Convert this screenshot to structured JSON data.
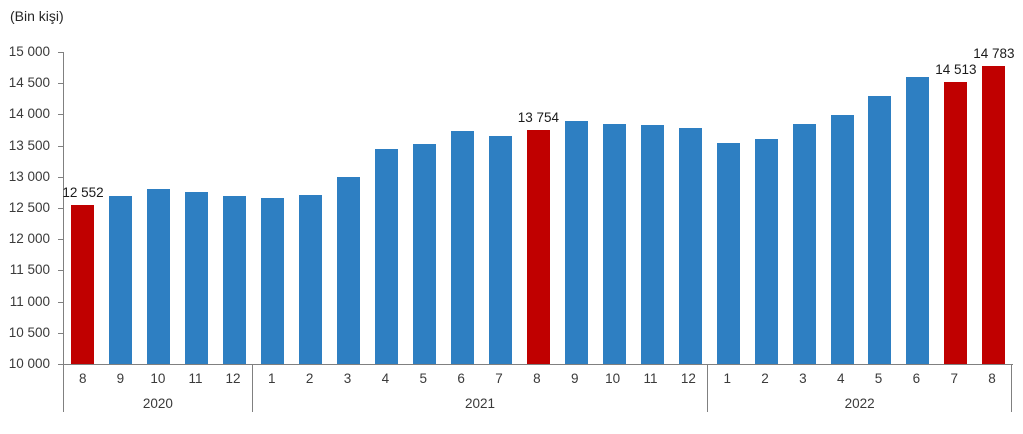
{
  "chart_data": {
    "type": "bar",
    "ylabel": "(Bin kişi)",
    "ylim": [
      10000,
      15000
    ],
    "ytick_step": 500,
    "ytick_labels_top_to_bottom": [
      "15 000",
      "14 500",
      "14 000",
      "13 500",
      "13 000",
      "12 500",
      "12 000",
      "11 500",
      "11 000",
      "10 500",
      "10 000"
    ],
    "grid": false,
    "legend": "none",
    "colors": {
      "bar": "#2E7FC2",
      "highlight": "#C00000",
      "axis": "#808080",
      "axis_text": "#3A3A3A",
      "value_text": "#1A1A1A"
    },
    "groups": [
      {
        "year": "2020",
        "bars": [
          {
            "month": "8",
            "value": 12552,
            "highlight": true,
            "label": "12 552"
          },
          {
            "month": "9",
            "value": 12700,
            "highlight": false
          },
          {
            "month": "10",
            "value": 12800,
            "highlight": false
          },
          {
            "month": "11",
            "value": 12760,
            "highlight": false
          },
          {
            "month": "12",
            "value": 12700,
            "highlight": false
          }
        ]
      },
      {
        "year": "2021",
        "bars": [
          {
            "month": "1",
            "value": 12660,
            "highlight": false
          },
          {
            "month": "2",
            "value": 12710,
            "highlight": false
          },
          {
            "month": "3",
            "value": 12990,
            "highlight": false
          },
          {
            "month": "4",
            "value": 13440,
            "highlight": false
          },
          {
            "month": "5",
            "value": 13530,
            "highlight": false
          },
          {
            "month": "6",
            "value": 13730,
            "highlight": false
          },
          {
            "month": "7",
            "value": 13660,
            "highlight": false
          },
          {
            "month": "8",
            "value": 13754,
            "highlight": true,
            "label": "13 754"
          },
          {
            "month": "9",
            "value": 13890,
            "highlight": false
          },
          {
            "month": "10",
            "value": 13850,
            "highlight": false
          },
          {
            "month": "11",
            "value": 13830,
            "highlight": false
          },
          {
            "month": "12",
            "value": 13780,
            "highlight": false
          }
        ]
      },
      {
        "year": "2022",
        "bars": [
          {
            "month": "1",
            "value": 13550,
            "highlight": false
          },
          {
            "month": "2",
            "value": 13610,
            "highlight": false
          },
          {
            "month": "3",
            "value": 13850,
            "highlight": false
          },
          {
            "month": "4",
            "value": 13990,
            "highlight": false
          },
          {
            "month": "5",
            "value": 14300,
            "highlight": false
          },
          {
            "month": "6",
            "value": 14600,
            "highlight": false
          },
          {
            "month": "7",
            "value": 14513,
            "highlight": true,
            "label": "14 513"
          },
          {
            "month": "8",
            "value": 14783,
            "highlight": true,
            "label": "14 783"
          }
        ]
      }
    ]
  }
}
